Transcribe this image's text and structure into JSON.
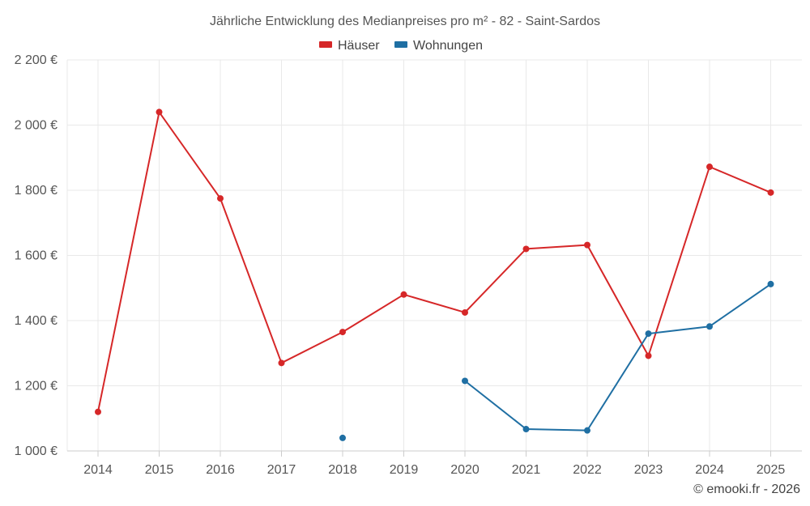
{
  "chart_data": {
    "type": "line",
    "title": "Jährliche Entwicklung des Medianpreises pro m² - 82 - Saint-Sardos",
    "xlabel": "",
    "ylabel": "",
    "categories": [
      "2014",
      "2015",
      "2016",
      "2017",
      "2018",
      "2019",
      "2020",
      "2021",
      "2022",
      "2023",
      "2024",
      "2025"
    ],
    "ylim": [
      1000,
      2200
    ],
    "yticks": [
      1000,
      1200,
      1400,
      1600,
      1800,
      2000,
      2200
    ],
    "ytick_labels": [
      "1 000 €",
      "1 200 €",
      "1 400 €",
      "1 600 €",
      "1 800 €",
      "2 000 €",
      "2 200 €"
    ],
    "grid": true,
    "legend_position": "top-center",
    "series": [
      {
        "name": "Häuser",
        "color": "#d62728",
        "values": [
          1120,
          2040,
          1775,
          1270,
          1365,
          1480,
          1425,
          1620,
          1632,
          1292,
          1872,
          1793
        ]
      },
      {
        "name": "Wohnungen",
        "color": "#1f6fa3",
        "values": [
          null,
          null,
          null,
          null,
          1040,
          null,
          1215,
          1067,
          1063,
          1360,
          1382,
          1512
        ]
      }
    ]
  },
  "credit": "© emooki.fr - 2026"
}
